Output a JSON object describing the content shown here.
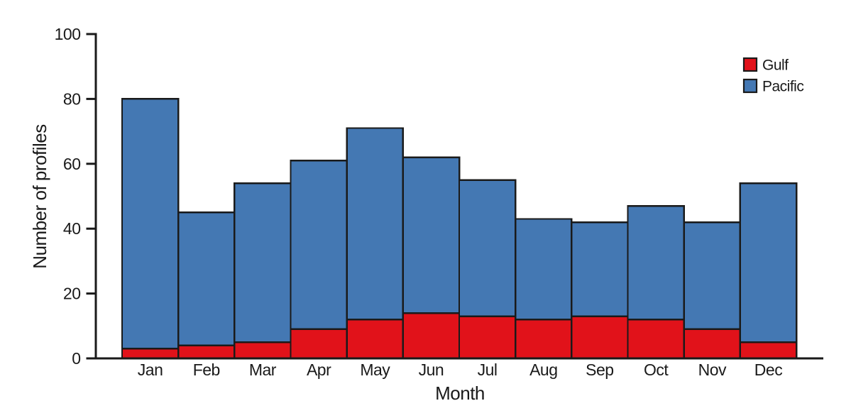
{
  "figure": {
    "background": "#ffffff",
    "axis_color": "#1a1a1a",
    "text_color": "#1a1a1a"
  },
  "chart_data": {
    "type": "bar",
    "stacked": true,
    "title": "",
    "xlabel": "Month",
    "ylabel": "Number of profiles",
    "categories": [
      "Jan",
      "Feb",
      "Mar",
      "Apr",
      "May",
      "Jun",
      "Jul",
      "Aug",
      "Sep",
      "Oct",
      "Nov",
      "Dec"
    ],
    "series": [
      {
        "name": "Gulf",
        "color": "#e1121a",
        "values": [
          3,
          4,
          5,
          9,
          12,
          14,
          13,
          12,
          13,
          12,
          9,
          5
        ]
      },
      {
        "name": "Pacific",
        "color": "#4478b3",
        "values": [
          77,
          41,
          49,
          52,
          59,
          48,
          42,
          31,
          29,
          35,
          33,
          49
        ]
      }
    ],
    "stacked_totals": [
      80,
      45,
      54,
      61,
      71,
      62,
      55,
      43,
      42,
      47,
      42,
      54
    ],
    "ylim": [
      0,
      100
    ],
    "yticks": [
      0,
      20,
      40,
      60,
      80,
      100
    ],
    "grid": false,
    "bar_outline_color": "#1a1a1a",
    "legend_position": "top-right",
    "legend": {
      "items": [
        {
          "label": "Gulf",
          "color": "#e1121a"
        },
        {
          "label": "Pacific",
          "color": "#4478b3"
        }
      ]
    }
  }
}
